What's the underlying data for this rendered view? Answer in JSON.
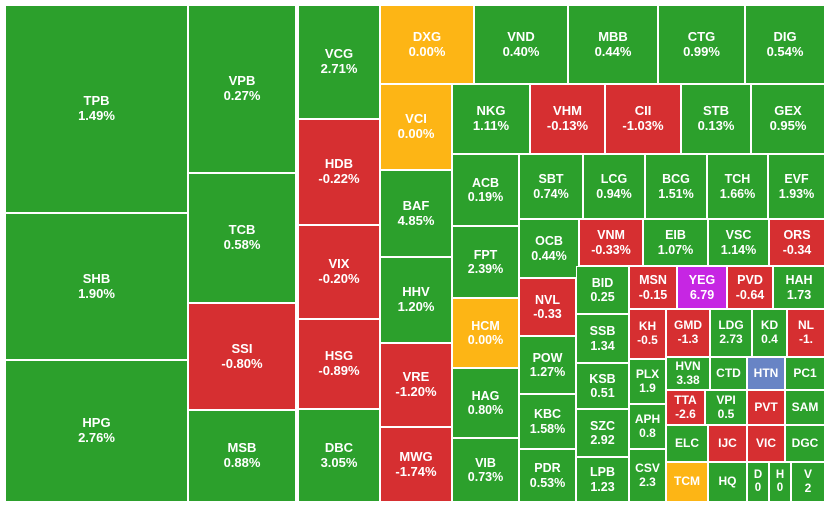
{
  "colors": {
    "up": "#2ca02c",
    "down": "#d62f31",
    "ref": "#fdb515",
    "ceil": "#c626e3",
    "floor": "#6884c5",
    "border": "#ffffff",
    "text": "#ffffff"
  },
  "chart_data": {
    "type": "heatmap",
    "title": "",
    "tiles": [
      {
        "ticker": "TPB",
        "change": "1.49%",
        "status": "up"
      },
      {
        "ticker": "SHB",
        "change": "1.90%",
        "status": "up"
      },
      {
        "ticker": "HPG",
        "change": "2.76%",
        "status": "up"
      },
      {
        "ticker": "VPB",
        "change": "0.27%",
        "status": "up"
      },
      {
        "ticker": "TCB",
        "change": "0.58%",
        "status": "up"
      },
      {
        "ticker": "SSI",
        "change": "-0.80%",
        "status": "down"
      },
      {
        "ticker": "MSB",
        "change": "0.88%",
        "status": "up"
      },
      {
        "ticker": "VCG",
        "change": "2.71%",
        "status": "up"
      },
      {
        "ticker": "HDB",
        "change": "-0.22%",
        "status": "down"
      },
      {
        "ticker": "VIX",
        "change": "-0.20%",
        "status": "down"
      },
      {
        "ticker": "HSG",
        "change": "-0.89%",
        "status": "down"
      },
      {
        "ticker": "DBC",
        "change": "3.05%",
        "status": "up"
      },
      {
        "ticker": "DXG",
        "change": "0.00%",
        "status": "ref"
      },
      {
        "ticker": "VCI",
        "change": "0.00%",
        "status": "ref"
      },
      {
        "ticker": "BAF",
        "change": "4.85%",
        "status": "up"
      },
      {
        "ticker": "HHV",
        "change": "1.20%",
        "status": "up"
      },
      {
        "ticker": "VRE",
        "change": "-1.20%",
        "status": "down"
      },
      {
        "ticker": "MWG",
        "change": "-1.74%",
        "status": "down"
      },
      {
        "ticker": "VND",
        "change": "0.40%",
        "status": "up"
      },
      {
        "ticker": "MBB",
        "change": "0.44%",
        "status": "up"
      },
      {
        "ticker": "CTG",
        "change": "0.99%",
        "status": "up"
      },
      {
        "ticker": "DIG",
        "change": "0.54%",
        "status": "up"
      },
      {
        "ticker": "NKG",
        "change": "1.11%",
        "status": "up"
      },
      {
        "ticker": "VHM",
        "change": "-0.13%",
        "status": "down"
      },
      {
        "ticker": "CII",
        "change": "-1.03%",
        "status": "down"
      },
      {
        "ticker": "STB",
        "change": "0.13%",
        "status": "up"
      },
      {
        "ticker": "GEX",
        "change": "0.95%",
        "status": "up"
      },
      {
        "ticker": "ACB",
        "change": "0.19%",
        "status": "up"
      },
      {
        "ticker": "FPT",
        "change": "2.39%",
        "status": "up"
      },
      {
        "ticker": "HCM",
        "change": "0.00%",
        "status": "ref"
      },
      {
        "ticker": "HAG",
        "change": "0.80%",
        "status": "up"
      },
      {
        "ticker": "VIB",
        "change": "0.73%",
        "status": "up"
      },
      {
        "ticker": "SBT",
        "change": "0.74%",
        "status": "up"
      },
      {
        "ticker": "LCG",
        "change": "0.94%",
        "status": "up"
      },
      {
        "ticker": "BCG",
        "change": "1.51%",
        "status": "up"
      },
      {
        "ticker": "TCH",
        "change": "1.66%",
        "status": "up"
      },
      {
        "ticker": "EVF",
        "change": "1.93%",
        "status": "up"
      },
      {
        "ticker": "OCB",
        "change": "0.44%",
        "status": "up"
      },
      {
        "ticker": "VNM",
        "change": "-0.33%",
        "status": "down"
      },
      {
        "ticker": "EIB",
        "change": "1.07%",
        "status": "up"
      },
      {
        "ticker": "VSC",
        "change": "1.14%",
        "status": "up"
      },
      {
        "ticker": "ORS",
        "change": "-0.34",
        "status": "down"
      },
      {
        "ticker": "NVL",
        "change": "-0.33",
        "status": "down"
      },
      {
        "ticker": "POW",
        "change": "1.27%",
        "status": "up"
      },
      {
        "ticker": "KBC",
        "change": "1.58%",
        "status": "up"
      },
      {
        "ticker": "PDR",
        "change": "0.53%",
        "status": "up"
      },
      {
        "ticker": "BID",
        "change": "0.25",
        "status": "up"
      },
      {
        "ticker": "SSB",
        "change": "1.34",
        "status": "up"
      },
      {
        "ticker": "KSB",
        "change": "0.51",
        "status": "up"
      },
      {
        "ticker": "SZC",
        "change": "2.92",
        "status": "up"
      },
      {
        "ticker": "LPB",
        "change": "1.23",
        "status": "up"
      },
      {
        "ticker": "MSN",
        "change": "-0.15",
        "status": "down"
      },
      {
        "ticker": "YEG",
        "change": "6.79",
        "status": "ceil"
      },
      {
        "ticker": "PVD",
        "change": "-0.64",
        "status": "down"
      },
      {
        "ticker": "HAH",
        "change": "1.73",
        "status": "up"
      },
      {
        "ticker": "KH",
        "change": "-0.5",
        "status": "down"
      },
      {
        "ticker": "GMD",
        "change": "-1.3",
        "status": "down"
      },
      {
        "ticker": "LDG",
        "change": "2.73",
        "status": "up"
      },
      {
        "ticker": "KD",
        "change": "0.4",
        "status": "up"
      },
      {
        "ticker": "NL",
        "change": "-1.",
        "status": "down"
      },
      {
        "ticker": "PLX",
        "change": "1.9",
        "status": "up"
      },
      {
        "ticker": "HVN",
        "change": "3.38",
        "status": "up"
      },
      {
        "ticker": "CTD",
        "change": "",
        "status": "up"
      },
      {
        "ticker": "HTN",
        "change": "",
        "status": "floor"
      },
      {
        "ticker": "PC1",
        "change": "",
        "status": "up"
      },
      {
        "ticker": "APH",
        "change": "0.8",
        "status": "up"
      },
      {
        "ticker": "TTA",
        "change": "-2.6",
        "status": "down"
      },
      {
        "ticker": "VPI",
        "change": "0.5",
        "status": "up"
      },
      {
        "ticker": "PVT",
        "change": "",
        "status": "down"
      },
      {
        "ticker": "SAM",
        "change": "",
        "status": "up"
      },
      {
        "ticker": "ELC",
        "change": "",
        "status": "up"
      },
      {
        "ticker": "IJC",
        "change": "",
        "status": "down"
      },
      {
        "ticker": "VIC",
        "change": "",
        "status": "down"
      },
      {
        "ticker": "DGC",
        "change": "",
        "status": "up"
      },
      {
        "ticker": "CSV",
        "change": "2.3",
        "status": "up"
      },
      {
        "ticker": "TCM",
        "change": "",
        "status": "ref"
      },
      {
        "ticker": "HQ",
        "change": "",
        "status": "up"
      },
      {
        "ticker": "D",
        "change": "0",
        "status": "up"
      },
      {
        "ticker": "H",
        "change": "0",
        "status": "up"
      },
      {
        "ticker": "V",
        "change": "2",
        "status": "up"
      }
    ]
  }
}
